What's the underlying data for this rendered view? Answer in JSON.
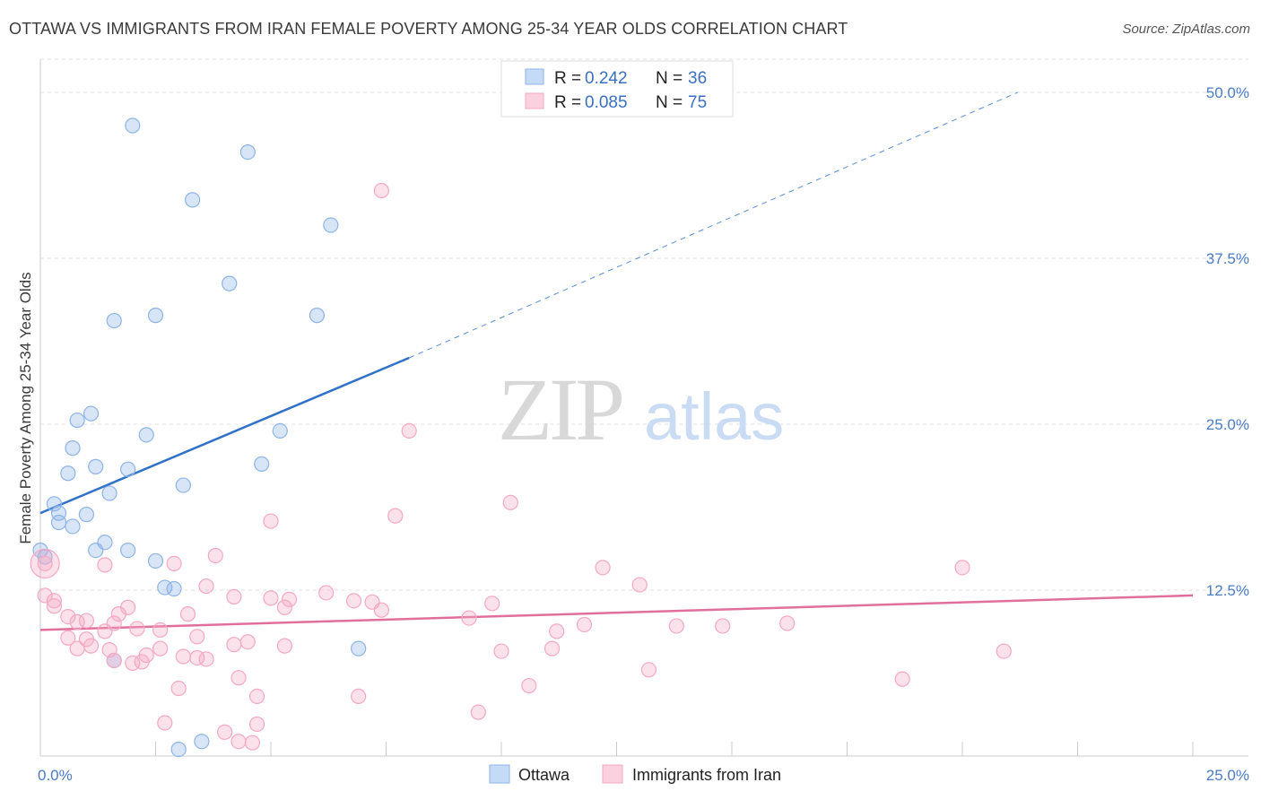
{
  "header": {
    "title": "OTTAWA VS IMMIGRANTS FROM IRAN FEMALE POVERTY AMONG 25-34 YEAR OLDS CORRELATION CHART",
    "source": "Source: ZipAtlas.com"
  },
  "watermark": {
    "zip": "ZIP",
    "atlas": "atlas"
  },
  "chart_data": {
    "type": "scatter",
    "title": "OTTAWA VS IMMIGRANTS FROM IRAN FEMALE POVERTY AMONG 25-34 YEAR OLDS CORRELATION CHART",
    "ylabel": "Female Poverty Among 25-34 Year Olds",
    "xlabel": "",
    "xlim": [
      0,
      25
    ],
    "ylim": [
      0,
      52.5
    ],
    "x_ticks": [
      {
        "value": 0,
        "label": "0.0%"
      },
      {
        "value": 25,
        "label": "25.0%"
      }
    ],
    "y_ticks": [
      {
        "value": 12.5,
        "label": "12.5%"
      },
      {
        "value": 25,
        "label": "25.0%"
      },
      {
        "value": 37.5,
        "label": "37.5%"
      },
      {
        "value": 50,
        "label": "50.0%"
      }
    ],
    "grid": true,
    "legend_position": "top-center",
    "series": [
      {
        "name": "Ottawa",
        "color": "#8db4e8",
        "line_color": "#2f72c8",
        "r": "0.242",
        "n": "36",
        "trend": {
          "x0": 0,
          "y0": 18.3,
          "x1": 8.0,
          "y1": 30.0,
          "dash_to_x": 21.2,
          "dash_to_y": 50.0
        },
        "points": [
          [
            2.0,
            47.5
          ],
          [
            4.5,
            45.5
          ],
          [
            3.3,
            41.9
          ],
          [
            6.3,
            40.0
          ],
          [
            4.1,
            35.6
          ],
          [
            1.6,
            32.8
          ],
          [
            2.5,
            33.2
          ],
          [
            6.0,
            33.2
          ],
          [
            1.1,
            25.8
          ],
          [
            0.8,
            25.3
          ],
          [
            2.3,
            24.2
          ],
          [
            5.2,
            24.5
          ],
          [
            0.7,
            23.2
          ],
          [
            1.2,
            21.8
          ],
          [
            1.9,
            21.6
          ],
          [
            4.8,
            22.0
          ],
          [
            0.6,
            21.3
          ],
          [
            3.1,
            20.4
          ],
          [
            1.5,
            19.8
          ],
          [
            0.3,
            19.0
          ],
          [
            0.4,
            18.3
          ],
          [
            1.0,
            18.2
          ],
          [
            0.4,
            17.6
          ],
          [
            0.7,
            17.3
          ],
          [
            1.4,
            16.1
          ],
          [
            1.9,
            15.5
          ],
          [
            1.2,
            15.5
          ],
          [
            0.0,
            15.5
          ],
          [
            0.1,
            15.0
          ],
          [
            2.5,
            14.7
          ],
          [
            2.7,
            12.7
          ],
          [
            2.9,
            12.6
          ],
          [
            6.9,
            8.1
          ],
          [
            1.6,
            7.2
          ],
          [
            3.5,
            1.1
          ],
          [
            3.0,
            0.5
          ]
        ]
      },
      {
        "name": "Immigrants from Iran",
        "color": "#f4a8c2",
        "line_color": "#e0709b",
        "r": "0.085",
        "n": "75",
        "trend": {
          "x0": 0,
          "y0": 9.5,
          "x1": 25,
          "y1": 12.1
        },
        "points": [
          [
            7.4,
            42.6
          ],
          [
            8.0,
            24.5
          ],
          [
            10.2,
            19.1
          ],
          [
            7.7,
            18.1
          ],
          [
            5.0,
            17.7
          ],
          [
            3.8,
            15.1
          ],
          [
            0.1,
            14.5
          ],
          [
            1.4,
            14.4
          ],
          [
            2.9,
            14.5
          ],
          [
            12.2,
            14.2
          ],
          [
            20.0,
            14.2
          ],
          [
            13.0,
            12.9
          ],
          [
            3.6,
            12.8
          ],
          [
            6.2,
            12.3
          ],
          [
            0.1,
            12.1
          ],
          [
            4.2,
            12.0
          ],
          [
            5.0,
            11.9
          ],
          [
            5.4,
            11.8
          ],
          [
            6.8,
            11.7
          ],
          [
            7.2,
            11.6
          ],
          [
            9.8,
            11.5
          ],
          [
            0.3,
            11.7
          ],
          [
            0.3,
            11.3
          ],
          [
            1.9,
            11.2
          ],
          [
            5.3,
            11.2
          ],
          [
            7.4,
            11.0
          ],
          [
            0.6,
            10.5
          ],
          [
            1.7,
            10.7
          ],
          [
            3.2,
            10.7
          ],
          [
            9.3,
            10.4
          ],
          [
            0.8,
            10.1
          ],
          [
            1.0,
            10.2
          ],
          [
            1.6,
            10.0
          ],
          [
            11.8,
            9.9
          ],
          [
            13.8,
            9.8
          ],
          [
            14.8,
            9.8
          ],
          [
            16.2,
            10.0
          ],
          [
            2.1,
            9.6
          ],
          [
            2.6,
            9.5
          ],
          [
            1.4,
            9.4
          ],
          [
            11.2,
            9.4
          ],
          [
            0.6,
            8.9
          ],
          [
            1.0,
            8.8
          ],
          [
            3.4,
            9.0
          ],
          [
            4.5,
            8.6
          ],
          [
            4.2,
            8.4
          ],
          [
            5.3,
            8.3
          ],
          [
            1.1,
            8.3
          ],
          [
            2.6,
            8.1
          ],
          [
            0.8,
            8.1
          ],
          [
            1.5,
            8.0
          ],
          [
            11.1,
            8.1
          ],
          [
            10.0,
            7.9
          ],
          [
            20.9,
            7.9
          ],
          [
            2.3,
            7.6
          ],
          [
            3.1,
            7.5
          ],
          [
            3.4,
            7.4
          ],
          [
            3.6,
            7.3
          ],
          [
            2.0,
            7.0
          ],
          [
            2.2,
            7.1
          ],
          [
            1.6,
            7.2
          ],
          [
            13.2,
            6.5
          ],
          [
            4.3,
            5.9
          ],
          [
            18.7,
            5.8
          ],
          [
            3.0,
            5.1
          ],
          [
            10.6,
            5.3
          ],
          [
            4.7,
            4.5
          ],
          [
            6.9,
            4.5
          ],
          [
            9.5,
            3.3
          ],
          [
            2.7,
            2.5
          ],
          [
            4.7,
            2.4
          ],
          [
            4.0,
            1.8
          ],
          [
            4.3,
            1.1
          ],
          [
            4.6,
            1.0
          ],
          [
            0.1,
            14.5
          ]
        ]
      }
    ]
  }
}
